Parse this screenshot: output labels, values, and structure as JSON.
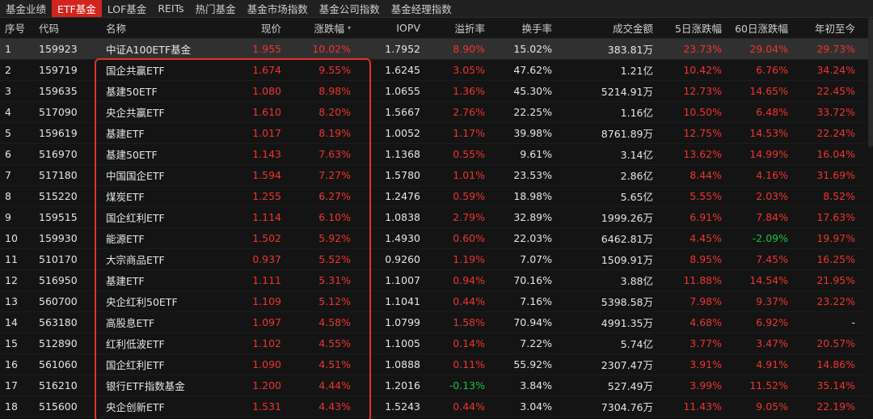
{
  "tabs": [
    {
      "label": "基金业绩",
      "active": false
    },
    {
      "label": "ETF基金",
      "active": true
    },
    {
      "label": "LOF基金",
      "active": false
    },
    {
      "label": "REITs",
      "active": false
    },
    {
      "label": "热门基金",
      "active": false
    },
    {
      "label": "基金市场指数",
      "active": false
    },
    {
      "label": "基金公司指数",
      "active": false
    },
    {
      "label": "基金经理指数",
      "active": false
    }
  ],
  "columns": {
    "idx": "序号",
    "code": "代码",
    "name": "名称",
    "price": "现价",
    "chg": "涨跌幅",
    "iopv": "IOPV",
    "prem": "溢折率",
    "turn": "换手率",
    "amt": "成交金额",
    "d5": "5日涨跌幅",
    "d60": "60日涨跌幅",
    "ytd": "年初至今"
  },
  "sort_indicator": "▾",
  "colors": {
    "up": "#f0342f",
    "down": "#19c33a",
    "accent": "#d3251d",
    "highlight_box": "#e0322c"
  },
  "rows": [
    {
      "idx": "1",
      "code": "159923",
      "name": "中证A100ETF基金",
      "price": "1.955",
      "chg": "10.02%",
      "iopv": "1.7952",
      "prem": "8.90%",
      "turn": "15.02%",
      "amt": "383.81万",
      "d5": "23.73%",
      "d60": "29.04%",
      "ytd": "29.73%",
      "highlight": true
    },
    {
      "idx": "2",
      "code": "159719",
      "name": "国企共赢ETF",
      "price": "1.674",
      "chg": "9.55%",
      "iopv": "1.6245",
      "prem": "3.05%",
      "turn": "47.62%",
      "amt": "1.21亿",
      "d5": "10.42%",
      "d60": "6.76%",
      "ytd": "34.24%"
    },
    {
      "idx": "3",
      "code": "159635",
      "name": "基建50ETF",
      "price": "1.080",
      "chg": "8.98%",
      "iopv": "1.0655",
      "prem": "1.36%",
      "turn": "45.30%",
      "amt": "5214.91万",
      "d5": "12.73%",
      "d60": "14.65%",
      "ytd": "22.45%"
    },
    {
      "idx": "4",
      "code": "517090",
      "name": "央企共赢ETF",
      "price": "1.610",
      "chg": "8.20%",
      "iopv": "1.5667",
      "prem": "2.76%",
      "turn": "22.25%",
      "amt": "1.16亿",
      "d5": "10.50%",
      "d60": "6.48%",
      "ytd": "33.72%"
    },
    {
      "idx": "5",
      "code": "159619",
      "name": "基建ETF",
      "price": "1.017",
      "chg": "8.19%",
      "iopv": "1.0052",
      "prem": "1.17%",
      "turn": "39.98%",
      "amt": "8761.89万",
      "d5": "12.75%",
      "d60": "14.53%",
      "ytd": "22.24%"
    },
    {
      "idx": "6",
      "code": "516970",
      "name": "基建50ETF",
      "price": "1.143",
      "chg": "7.63%",
      "iopv": "1.1368",
      "prem": "0.55%",
      "turn": "9.61%",
      "amt": "3.14亿",
      "d5": "13.62%",
      "d60": "14.99%",
      "ytd": "16.04%"
    },
    {
      "idx": "7",
      "code": "517180",
      "name": "中国国企ETF",
      "price": "1.594",
      "chg": "7.27%",
      "iopv": "1.5780",
      "prem": "1.01%",
      "turn": "23.53%",
      "amt": "2.86亿",
      "d5": "8.44%",
      "d60": "4.16%",
      "ytd": "31.69%"
    },
    {
      "idx": "8",
      "code": "515220",
      "name": "煤炭ETF",
      "price": "1.255",
      "chg": "6.27%",
      "iopv": "1.2476",
      "prem": "0.59%",
      "turn": "18.98%",
      "amt": "5.65亿",
      "d5": "5.55%",
      "d60": "2.03%",
      "ytd": "8.52%"
    },
    {
      "idx": "9",
      "code": "159515",
      "name": "国企红利ETF",
      "price": "1.114",
      "chg": "6.10%",
      "iopv": "1.0838",
      "prem": "2.79%",
      "turn": "32.89%",
      "amt": "1999.26万",
      "d5": "6.91%",
      "d60": "7.84%",
      "ytd": "17.63%"
    },
    {
      "idx": "10",
      "code": "159930",
      "name": "能源ETF",
      "price": "1.502",
      "chg": "5.92%",
      "iopv": "1.4930",
      "prem": "0.60%",
      "turn": "22.03%",
      "amt": "6462.81万",
      "d5": "4.45%",
      "d60": "-2.09%",
      "ytd": "19.97%"
    },
    {
      "idx": "11",
      "code": "510170",
      "name": "大宗商品ETF",
      "price": "0.937",
      "chg": "5.52%",
      "iopv": "0.9260",
      "prem": "1.19%",
      "turn": "7.07%",
      "amt": "1509.91万",
      "d5": "8.95%",
      "d60": "7.45%",
      "ytd": "16.25%"
    },
    {
      "idx": "12",
      "code": "516950",
      "name": "基建ETF",
      "price": "1.111",
      "chg": "5.31%",
      "iopv": "1.1007",
      "prem": "0.94%",
      "turn": "70.16%",
      "amt": "3.88亿",
      "d5": "11.88%",
      "d60": "14.54%",
      "ytd": "21.95%"
    },
    {
      "idx": "13",
      "code": "560700",
      "name": "央企红利50ETF",
      "price": "1.109",
      "chg": "5.12%",
      "iopv": "1.1041",
      "prem": "0.44%",
      "turn": "7.16%",
      "amt": "5398.58万",
      "d5": "7.98%",
      "d60": "9.37%",
      "ytd": "23.22%"
    },
    {
      "idx": "14",
      "code": "563180",
      "name": "高股息ETF",
      "price": "1.097",
      "chg": "4.58%",
      "iopv": "1.0799",
      "prem": "1.58%",
      "turn": "70.94%",
      "amt": "4991.35万",
      "d5": "4.68%",
      "d60": "6.92%",
      "ytd": "-"
    },
    {
      "idx": "15",
      "code": "512890",
      "name": "红利低波ETF",
      "price": "1.102",
      "chg": "4.55%",
      "iopv": "1.1005",
      "prem": "0.14%",
      "turn": "7.22%",
      "amt": "5.74亿",
      "d5": "3.77%",
      "d60": "3.47%",
      "ytd": "20.57%"
    },
    {
      "idx": "16",
      "code": "561060",
      "name": "国企红利ETF",
      "price": "1.090",
      "chg": "4.51%",
      "iopv": "1.0888",
      "prem": "0.11%",
      "turn": "55.92%",
      "amt": "2307.47万",
      "d5": "3.91%",
      "d60": "4.91%",
      "ytd": "14.86%"
    },
    {
      "idx": "17",
      "code": "516210",
      "name": "银行ETF指数基金",
      "price": "1.200",
      "chg": "4.44%",
      "iopv": "1.2016",
      "prem": "-0.13%",
      "turn": "3.84%",
      "amt": "527.49万",
      "d5": "3.99%",
      "d60": "11.52%",
      "ytd": "35.14%"
    },
    {
      "idx": "18",
      "code": "515600",
      "name": "央企创新ETF",
      "price": "1.531",
      "chg": "4.43%",
      "iopv": "1.5243",
      "prem": "0.44%",
      "turn": "3.04%",
      "amt": "7304.76万",
      "d5": "11.43%",
      "d60": "9.05%",
      "ytd": "22.19%"
    }
  ]
}
